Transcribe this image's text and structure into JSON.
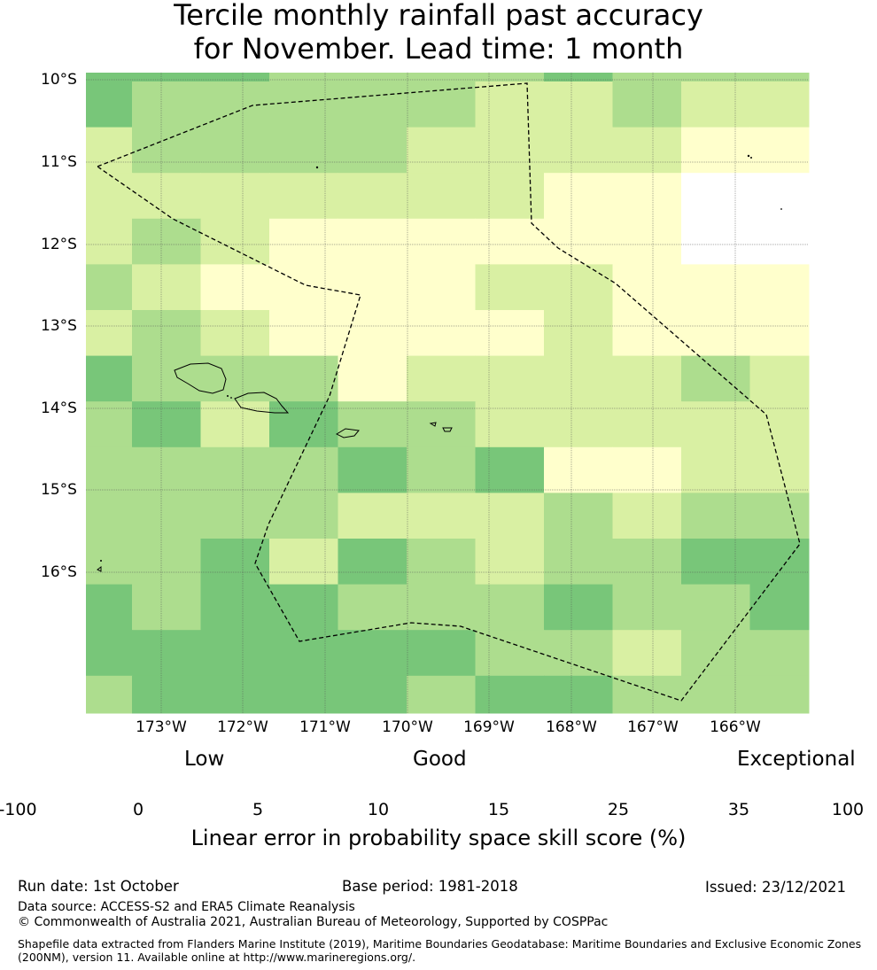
{
  "title": {
    "line1": "Tercile monthly rainfall past accuracy",
    "line2": "for November. Lead time: 1 month"
  },
  "map": {
    "lat_labels": [
      "10°S",
      "11°S",
      "12°S",
      "13°S",
      "14°S",
      "15°S",
      "16°S"
    ],
    "lon_labels": [
      "173°W",
      "172°W",
      "171°W",
      "170°W",
      "169°W",
      "168°W",
      "167°W",
      "166°W"
    ],
    "palette": [
      "#ffffff",
      "#ffffcc",
      "#d9f0a3",
      "#addd8e",
      "#78c679",
      "#41ab5d",
      "#238443"
    ],
    "grid_classes": [
      [
        4,
        4,
        4,
        3,
        3,
        3,
        3,
        4,
        3,
        3,
        3
      ],
      [
        4,
        3,
        3,
        3,
        3,
        3,
        2,
        2,
        3,
        2,
        2
      ],
      [
        2,
        3,
        3,
        3,
        3,
        2,
        2,
        2,
        2,
        1,
        1
      ],
      [
        2,
        2,
        2,
        2,
        2,
        2,
        2,
        1,
        1,
        0,
        0
      ],
      [
        2,
        3,
        2,
        1,
        1,
        1,
        1,
        1,
        1,
        0,
        0
      ],
      [
        3,
        2,
        1,
        1,
        1,
        1,
        2,
        2,
        1,
        1,
        1
      ],
      [
        2,
        3,
        2,
        1,
        1,
        1,
        1,
        2,
        1,
        1,
        1
      ],
      [
        4,
        3,
        3,
        3,
        1,
        2,
        2,
        2,
        2,
        3,
        2
      ],
      [
        3,
        4,
        2,
        4,
        3,
        3,
        2,
        2,
        2,
        2,
        2
      ],
      [
        3,
        3,
        3,
        3,
        4,
        3,
        4,
        1,
        1,
        2,
        2
      ],
      [
        3,
        3,
        3,
        3,
        2,
        2,
        2,
        3,
        2,
        3,
        3
      ],
      [
        3,
        3,
        4,
        2,
        4,
        3,
        2,
        3,
        3,
        4,
        4
      ],
      [
        4,
        3,
        4,
        4,
        3,
        3,
        3,
        4,
        3,
        3,
        4
      ],
      [
        4,
        4,
        4,
        4,
        4,
        4,
        3,
        3,
        2,
        3,
        3
      ],
      [
        3,
        4,
        4,
        4,
        4,
        3,
        4,
        4,
        3,
        3,
        3
      ]
    ]
  },
  "colorbar": {
    "categories": [
      "Low",
      "Good",
      "Exceptional"
    ],
    "ticks": [
      "-100",
      "0",
      "5",
      "10",
      "15",
      "25",
      "35",
      "100"
    ],
    "title": "Linear error in probability space skill score (%)"
  },
  "footer": {
    "run_date": "Run date: 1st October",
    "base_period": "Base period: 1981-2018",
    "issued": "Issued: 23/12/2021",
    "data_source": "Data source: ACCESS-S2 and ERA5 Climate Reanalysis",
    "copyright": "© Commonwealth of Australia 2021, Australian Bureau of Meteorology, Supported by COSPPac",
    "shapefile_line1": "Shapefile data extracted from Flanders Marine Institute (2019), Maritime Boundaries Geodatabase: Maritime Boundaries and Exclusive Economic Zones",
    "shapefile_line2": "(200NM), version 11. Available online at http://www.marineregions.org/."
  }
}
